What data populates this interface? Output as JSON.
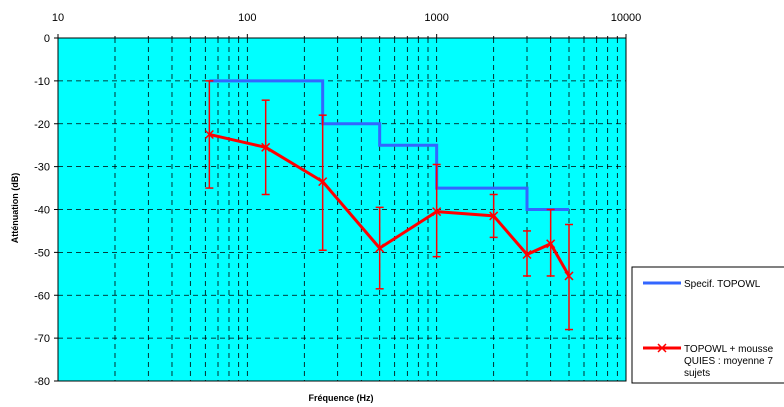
{
  "chart_data": {
    "type": "line",
    "x_scale": "log",
    "x_ticks": [
      10,
      100,
      1000,
      10000
    ],
    "x_tick_labels": [
      "10",
      "100",
      "1000",
      "10000"
    ],
    "xlim": [
      10,
      10000
    ],
    "y_ticks": [
      0,
      -10,
      -20,
      -30,
      -40,
      -50,
      -60,
      -70,
      -80
    ],
    "y_tick_labels": [
      "0",
      "-10",
      "-20",
      "-30",
      "-40",
      "-50",
      "-60",
      "-70",
      "-80"
    ],
    "ylim": [
      -80,
      0
    ],
    "xlabel": "Fréquence (Hz)",
    "ylabel": "Atténuation (dB)",
    "grid": true,
    "plot_background": "#00FFFF",
    "legend_position": "right",
    "series": [
      {
        "name": "Specif. TOPOWL",
        "color": "#3366FF",
        "style": "step",
        "x": [
          63,
          250,
          250,
          500,
          500,
          1000,
          1000,
          3000,
          3000,
          5000
        ],
        "values": [
          -10,
          -10,
          -20,
          -20,
          -25,
          -25,
          -35,
          -35,
          -40,
          -40
        ]
      },
      {
        "name": "TOPOWL + mousse QUIES : moyenne 7 sujets",
        "legend_lines": [
          "TOPOWL + mousse",
          "QUIES : moyenne 7",
          "sujets"
        ],
        "color": "#FF0000",
        "marker": "x",
        "x": [
          63,
          125,
          250,
          500,
          1000,
          2000,
          3000,
          4000,
          5000
        ],
        "values": [
          -22.5,
          -25.5,
          -33.5,
          -49,
          -40.5,
          -41.5,
          -50.5,
          -48,
          -55.5
        ],
        "error_low": [
          -35,
          -36.5,
          -49.5,
          -58.5,
          -51,
          -46.5,
          -55.5,
          -55.5,
          -68
        ],
        "error_high": [
          -10,
          -14.5,
          -18,
          -39.5,
          -29.5,
          -36.5,
          -45,
          -40,
          -43.5
        ]
      }
    ]
  }
}
